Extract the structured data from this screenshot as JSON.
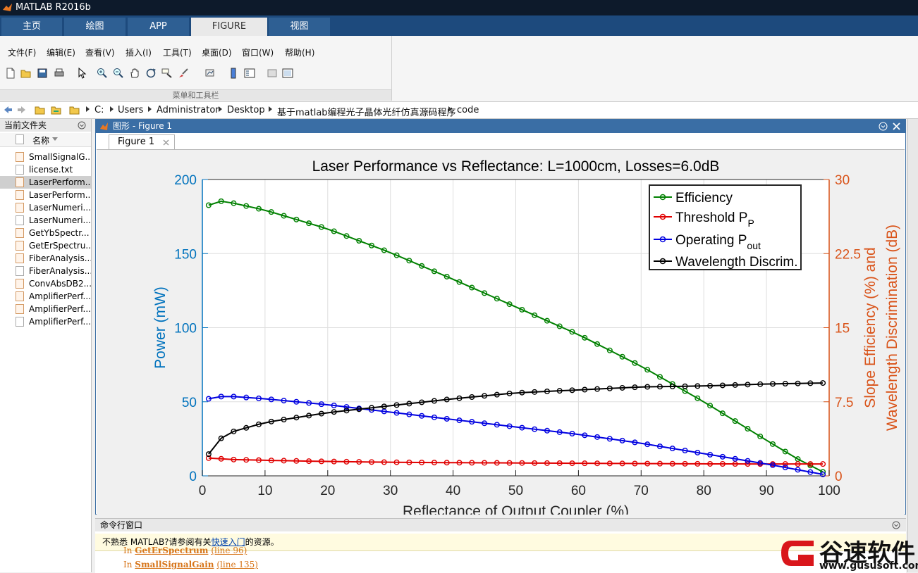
{
  "app": {
    "title": "MATLAB R2016b"
  },
  "tabs": [
    {
      "label": "主页"
    },
    {
      "label": "绘图"
    },
    {
      "label": "APP"
    },
    {
      "label": "FIGURE"
    },
    {
      "label": "视图"
    }
  ],
  "menu": [
    {
      "label": "文件(F)"
    },
    {
      "label": "编辑(E)"
    },
    {
      "label": "查看(V)"
    },
    {
      "label": "插入(I)"
    },
    {
      "label": "工具(T)"
    },
    {
      "label": "桌面(D)"
    },
    {
      "label": "窗口(W)"
    },
    {
      "label": "帮助(H)"
    }
  ],
  "toolbar": {
    "group_label": "菜单和工具栏",
    "icons": [
      "new-file-icon",
      "open-folder-icon",
      "save-icon",
      "print-icon",
      "pointer-icon",
      "zoom-in-icon",
      "zoom-out-icon",
      "pan-icon",
      "rotate-icon",
      "data-cursor-icon",
      "brush-icon",
      "link-icon",
      "colorbar-icon",
      "legend-icon",
      "hide-plot-tools-icon",
      "show-plot-tools-icon"
    ]
  },
  "address": {
    "segments": [
      "C:",
      "Users",
      "Administrator",
      "Desktop",
      "基于matlab编程光子晶体光纤仿真源码程序",
      "code"
    ]
  },
  "current_folder": {
    "title": "当前文件夹",
    "column": "名称",
    "files": [
      {
        "name": "SmallSignalG...",
        "type": "m"
      },
      {
        "name": "license.txt",
        "type": "txt"
      },
      {
        "name": "LaserPerform...",
        "type": "m",
        "selected": true
      },
      {
        "name": "LaserPerform...",
        "type": "m"
      },
      {
        "name": "LaserNumeri...",
        "type": "m"
      },
      {
        "name": "LaserNumeri...",
        "type": "txt"
      },
      {
        "name": "GetYbSpectr...",
        "type": "m"
      },
      {
        "name": "GetErSpectru...",
        "type": "m"
      },
      {
        "name": "FiberAnalysis....",
        "type": "m"
      },
      {
        "name": "FiberAnalysis....",
        "type": "txt"
      },
      {
        "name": "ConvAbsDB2...",
        "type": "m"
      },
      {
        "name": "AmplifierPerf...",
        "type": "m"
      },
      {
        "name": "AmplifierPerf...",
        "type": "m"
      },
      {
        "name": "AmplifierPerf...",
        "type": "txt"
      }
    ]
  },
  "figure_window": {
    "title": "图形 - Figure 1",
    "tab_label": "Figure 1"
  },
  "command_window": {
    "title": "命令行窗口",
    "notice_prefix": "不熟悉 MATLAB?请参阅有关",
    "notice_link": "快速入门",
    "notice_suffix": "的资源。",
    "lines": [
      {
        "prefix": "In",
        "func": "GetErSpectrum",
        "loc": "(line 96)"
      },
      {
        "prefix": "In",
        "func": "SmallSignalGain",
        "loc": "(line 135)"
      }
    ]
  },
  "watermark": {
    "brand": "谷速软件",
    "url": "www.gususoft.com"
  },
  "colors": {
    "left_axis": "#0072bd",
    "right_axis": "#d95319",
    "efficiency": "#008000",
    "threshold": "#e00000",
    "operating": "#0000e0",
    "discrim": "#000000"
  },
  "chart_data": {
    "type": "line",
    "title": "Laser Performance vs Reflectance: L=1000cm, Losses=6.0dB",
    "xlabel": "Reflectance of Output Coupler (%)",
    "ylabel_left": "Power (mW)",
    "ylabel_right_line1": "Slope Efficiency (%) and",
    "ylabel_right_line2": "Wavelength Discrimination (dB)",
    "xlim": [
      0,
      100
    ],
    "ylim_left": [
      0,
      200
    ],
    "ylim_right": [
      0,
      30
    ],
    "xticks": [
      0,
      10,
      20,
      30,
      40,
      50,
      60,
      70,
      80,
      90,
      100
    ],
    "yticks_left": [
      0,
      50,
      100,
      150,
      200
    ],
    "yticks_right": [
      "0",
      "7.5",
      "15",
      "22.5",
      "30"
    ],
    "grid": true,
    "legend_position": "top-right",
    "series": [
      {
        "name": "Efficiency",
        "axis": "right",
        "color": "#008000",
        "x": [
          1,
          3,
          5,
          10,
          20,
          30,
          40,
          50,
          60,
          70,
          80,
          90,
          95,
          99
        ],
        "y": [
          27.4,
          27.8,
          27.6,
          26.9,
          25.0,
          22.6,
          19.9,
          17.1,
          14.3,
          11.1,
          7.5,
          3.6,
          1.7,
          0.4
        ]
      },
      {
        "name": "Threshold P_P",
        "axis": "left",
        "color": "#e00000",
        "x": [
          1,
          5,
          10,
          20,
          30,
          40,
          50,
          60,
          70,
          80,
          90,
          99
        ],
        "y": [
          12,
          11,
          10.5,
          9.7,
          9.2,
          8.9,
          8.7,
          8.5,
          8.3,
          8.1,
          8.0,
          8.0
        ]
      },
      {
        "name": "Operating P_out",
        "axis": "left",
        "color": "#0000e0",
        "x": [
          1,
          3,
          5,
          10,
          20,
          30,
          40,
          50,
          60,
          70,
          80,
          90,
          99
        ],
        "y": [
          52,
          53.5,
          53.5,
          52,
          48,
          43,
          38,
          33,
          28,
          22,
          15,
          8,
          1
        ]
      },
      {
        "name": "Wavelength Discrim.",
        "axis": "right",
        "color": "#000000",
        "x": [
          1,
          3,
          5,
          10,
          20,
          30,
          40,
          50,
          60,
          70,
          80,
          90,
          99
        ],
        "y": [
          2.2,
          3.8,
          4.5,
          5.4,
          6.4,
          7.1,
          7.8,
          8.4,
          8.7,
          9.0,
          9.1,
          9.3,
          9.4
        ]
      }
    ]
  }
}
